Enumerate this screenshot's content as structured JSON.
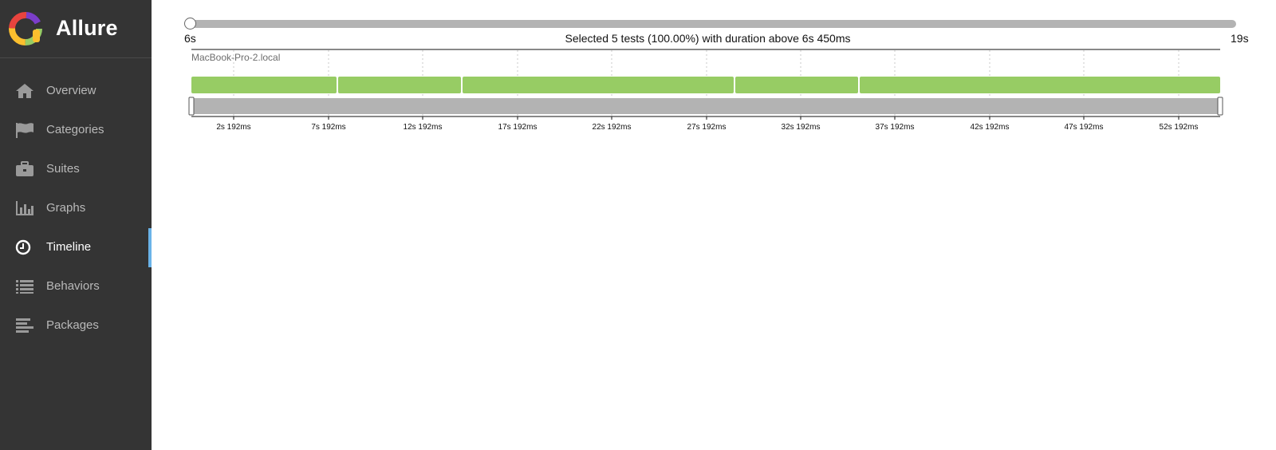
{
  "app": {
    "title": "Allure"
  },
  "sidebar": {
    "items": [
      {
        "label": "Overview",
        "icon": "home-icon",
        "active": false
      },
      {
        "label": "Categories",
        "icon": "flag-icon",
        "active": false
      },
      {
        "label": "Suites",
        "icon": "briefcase-icon",
        "active": false
      },
      {
        "label": "Graphs",
        "icon": "bar-chart-icon",
        "active": false
      },
      {
        "label": "Timeline",
        "icon": "clock-icon",
        "active": true
      },
      {
        "label": "Behaviors",
        "icon": "list-icon",
        "active": false
      },
      {
        "label": "Packages",
        "icon": "align-left-icon",
        "active": false
      }
    ]
  },
  "duration_filter": {
    "min_label": "6s",
    "max_label": "19s",
    "summary": "Selected 5 tests (100.00%) with duration above 6s 450ms"
  },
  "timeline": {
    "host": "MacBook-Pro-2.local",
    "ticks": [
      "2s 192ms",
      "7s 192ms",
      "12s 192ms",
      "17s 192ms",
      "22s 192ms",
      "27s 192ms",
      "32s 192ms",
      "37s 192ms",
      "42s 192ms",
      "47s 192ms",
      "52s 192ms"
    ],
    "colors": {
      "passed": "#97cc64",
      "brush": "#b3b3b3",
      "grid": "#c8c8c8",
      "accent": "#6ab3e8"
    }
  }
}
